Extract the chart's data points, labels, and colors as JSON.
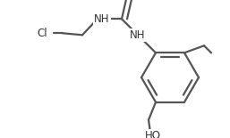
{
  "background": "#ffffff",
  "line_color": "#555555",
  "line_width": 1.6,
  "figsize": [
    2.57,
    1.55
  ],
  "dpi": 100,
  "xlim": [
    0,
    257
  ],
  "ylim": [
    0,
    155
  ]
}
